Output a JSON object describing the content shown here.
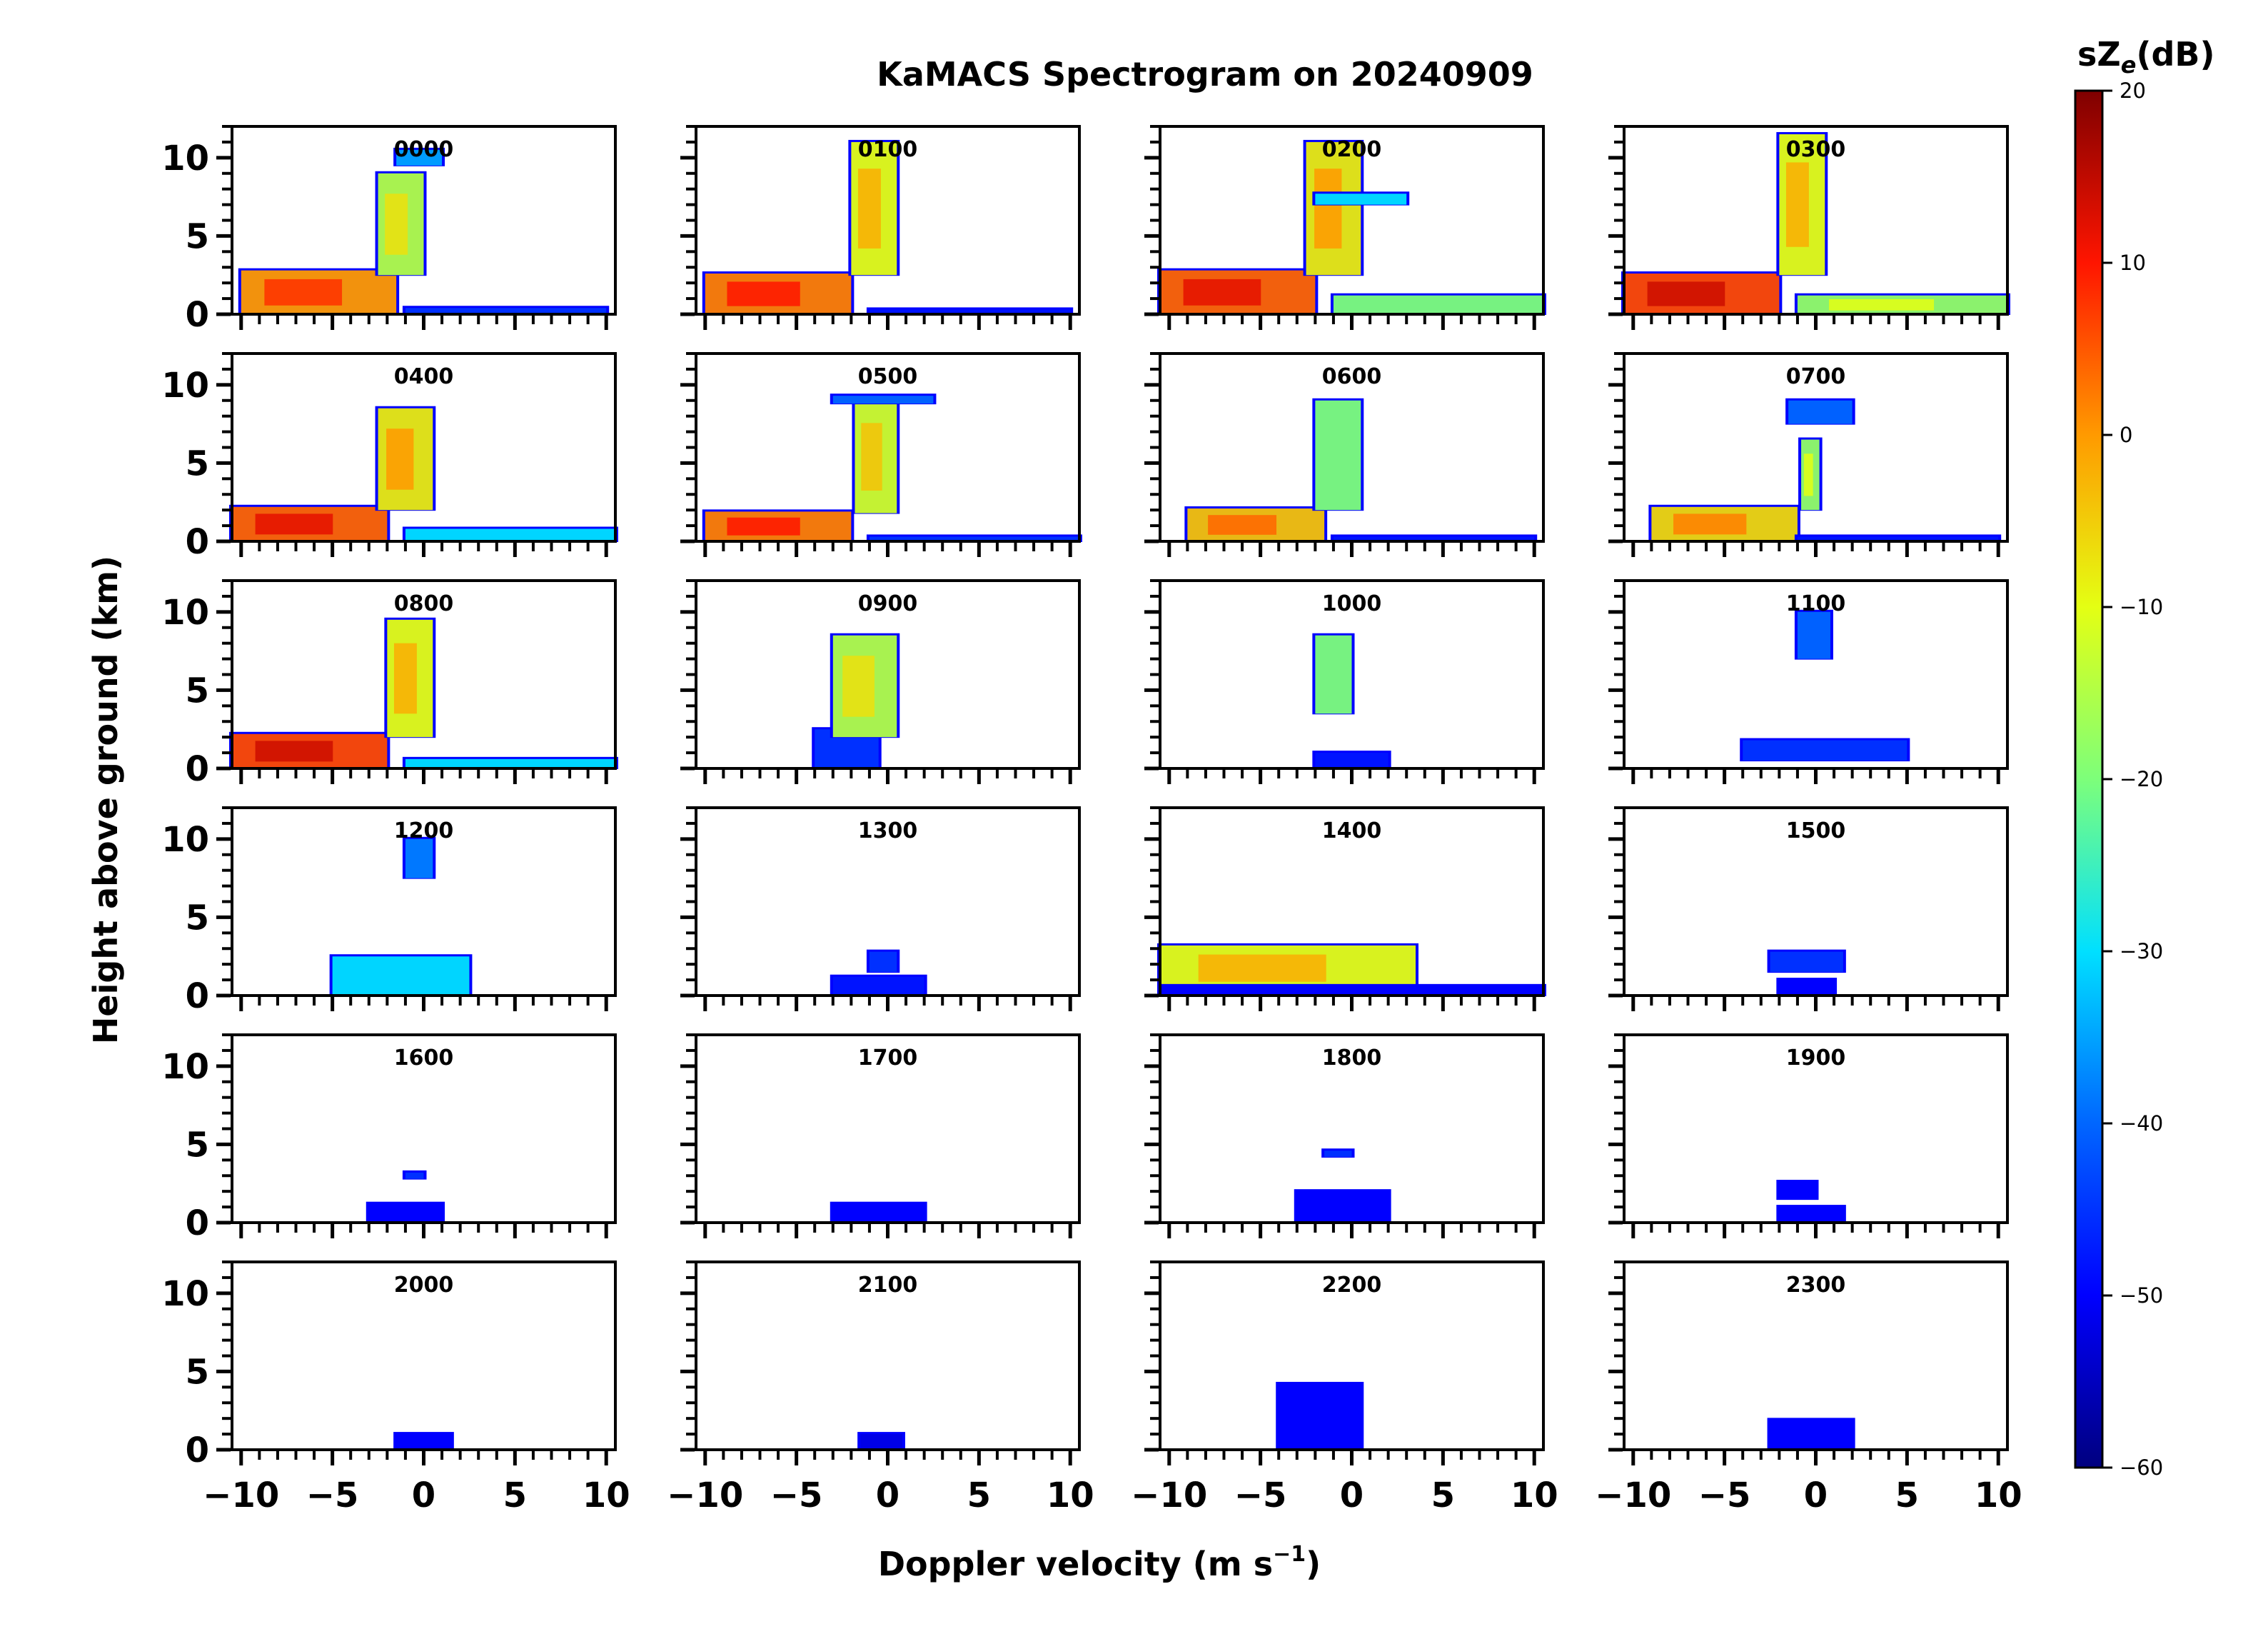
{
  "chart_data": {
    "type": "heatmap",
    "title": "KaMACS Spectrogram on 20240909",
    "xlabel_main": "Doppler velocity (m s",
    "xlabel_sup": "−1",
    "xlabel_close": ")",
    "ylabel": "Height above ground (km)",
    "colorbar": {
      "label_main": "sZ",
      "label_sub": "e",
      "label_rest": "(dB)",
      "range": [
        -60,
        20
      ],
      "ticks": [
        20,
        10,
        0,
        -10,
        -20,
        -30,
        -40,
        -50,
        -60
      ],
      "tick_labels": [
        "20",
        "10",
        "0",
        "−10",
        "−20",
        "−30",
        "−40",
        "−50",
        "−60"
      ]
    },
    "x_range": [
      -10.5,
      10.5
    ],
    "y_range": [
      0,
      12
    ],
    "x_ticks": [
      -10,
      -5,
      0,
      5,
      10
    ],
    "x_tick_labels": [
      "−10",
      "−5",
      "0",
      "5",
      "10"
    ],
    "y_ticks": [
      0,
      5,
      10
    ],
    "y_tick_labels": [
      "0",
      "5",
      "10"
    ],
    "panels": [
      {
        "label": "0000",
        "blobs": [
          {
            "v0": -10,
            "v1": -1.5,
            "h0": 0,
            "h1": 2.8,
            "db": 0
          },
          {
            "v0": -2.5,
            "v1": 0,
            "h0": 2.5,
            "h1": 9,
            "db": -15
          },
          {
            "v0": -1.5,
            "v1": 1,
            "h0": 9.5,
            "h1": 10.5,
            "db": -35
          },
          {
            "v0": -1,
            "v1": 10,
            "h0": 0,
            "h1": 0.4,
            "db": -45
          }
        ]
      },
      {
        "label": "0100",
        "blobs": [
          {
            "v0": -10,
            "v1": -2,
            "h0": 0,
            "h1": 2.6,
            "db": 2
          },
          {
            "v0": -2,
            "v1": 0.5,
            "h0": 2.5,
            "h1": 11,
            "db": -10
          },
          {
            "v0": -1,
            "v1": 10,
            "h0": 0,
            "h1": 0.3,
            "db": -48
          }
        ]
      },
      {
        "label": "0200",
        "blobs": [
          {
            "v0": -10.5,
            "v1": -2,
            "h0": 0,
            "h1": 2.8,
            "db": 4
          },
          {
            "v0": -2.5,
            "v1": 0.5,
            "h0": 2.5,
            "h1": 11,
            "db": -8
          },
          {
            "v0": -2,
            "v1": 3,
            "h0": 7,
            "h1": 7.7,
            "db": -30
          },
          {
            "v0": -1,
            "v1": 10.5,
            "h0": 0,
            "h1": 1.2,
            "db": -20
          }
        ]
      },
      {
        "label": "0300",
        "blobs": [
          {
            "v0": -10.5,
            "v1": -2,
            "h0": 0,
            "h1": 2.6,
            "db": 6
          },
          {
            "v0": -2,
            "v1": 0.5,
            "h0": 2.5,
            "h1": 11.5,
            "db": -10
          },
          {
            "v0": -1,
            "v1": 10.5,
            "h0": 0,
            "h1": 1.2,
            "db": -18
          }
        ]
      },
      {
        "label": "0400",
        "blobs": [
          {
            "v0": -10.5,
            "v1": -2,
            "h0": 0,
            "h1": 2.2,
            "db": 4
          },
          {
            "v0": -2.5,
            "v1": 0.5,
            "h0": 2,
            "h1": 8.5,
            "db": -8
          },
          {
            "v0": -1,
            "v1": 10.5,
            "h0": 0,
            "h1": 0.8,
            "db": -30
          }
        ]
      },
      {
        "label": "0500",
        "blobs": [
          {
            "v0": -10,
            "v1": -2,
            "h0": 0,
            "h1": 1.9,
            "db": 2
          },
          {
            "v0": -1.8,
            "v1": 0.5,
            "h0": 1.8,
            "h1": 9,
            "db": -12
          },
          {
            "v0": -3,
            "v1": 2.5,
            "h0": 8.8,
            "h1": 9.3,
            "db": -40
          },
          {
            "v0": -1,
            "v1": 10.5,
            "h0": 0,
            "h1": 0.3,
            "db": -45
          }
        ]
      },
      {
        "label": "0600",
        "blobs": [
          {
            "v0": -9,
            "v1": -1.5,
            "h0": 0,
            "h1": 2.1,
            "db": -4
          },
          {
            "v0": -2,
            "v1": 0.5,
            "h0": 2,
            "h1": 9,
            "db": -20
          },
          {
            "v0": -1,
            "v1": 10,
            "h0": 0,
            "h1": 0.3,
            "db": -48
          }
        ]
      },
      {
        "label": "0700",
        "blobs": [
          {
            "v0": -9,
            "v1": -1,
            "h0": 0,
            "h1": 2.2,
            "db": -6
          },
          {
            "v0": -0.8,
            "v1": 0.2,
            "h0": 2,
            "h1": 6.5,
            "db": -18
          },
          {
            "v0": -1.5,
            "v1": 2,
            "h0": 7.5,
            "h1": 9,
            "db": -40
          },
          {
            "v0": -1,
            "v1": 10,
            "h0": 0,
            "h1": 0.3,
            "db": -48
          }
        ]
      },
      {
        "label": "0800",
        "blobs": [
          {
            "v0": -10.5,
            "v1": -2,
            "h0": 0,
            "h1": 2.2,
            "db": 6
          },
          {
            "v0": -2,
            "v1": 0.5,
            "h0": 2,
            "h1": 9.5,
            "db": -10
          },
          {
            "v0": -1,
            "v1": 10.5,
            "h0": 0,
            "h1": 0.6,
            "db": -30
          }
        ]
      },
      {
        "label": "0900",
        "blobs": [
          {
            "v0": -4,
            "v1": -0.5,
            "h0": 0,
            "h1": 2.5,
            "db": -45
          },
          {
            "v0": -3,
            "v1": 0.5,
            "h0": 2,
            "h1": 8.5,
            "db": -15
          }
        ]
      },
      {
        "label": "1000",
        "blobs": [
          {
            "v0": -2,
            "v1": 0,
            "h0": 3.5,
            "h1": 8.5,
            "db": -20
          },
          {
            "v0": -2,
            "v1": 2,
            "h0": 0,
            "h1": 1,
            "db": -48
          }
        ]
      },
      {
        "label": "1100",
        "blobs": [
          {
            "v0": -1,
            "v1": 0.8,
            "h0": 7,
            "h1": 10,
            "db": -40
          },
          {
            "v0": -4,
            "v1": 5,
            "h0": 0.5,
            "h1": 1.8,
            "db": -45
          }
        ]
      },
      {
        "label": "1200",
        "blobs": [
          {
            "v0": -1,
            "v1": 0.5,
            "h0": 7.5,
            "h1": 10,
            "db": -38
          },
          {
            "v0": -5,
            "v1": 2.5,
            "h0": 0,
            "h1": 2.5,
            "db": -30
          }
        ]
      },
      {
        "label": "1300",
        "blobs": [
          {
            "v0": -3,
            "v1": 2,
            "h0": 0,
            "h1": 1.2,
            "db": -48
          },
          {
            "v0": -1,
            "v1": 0.5,
            "h0": 1.5,
            "h1": 2.8,
            "db": -45
          }
        ]
      },
      {
        "label": "1400",
        "blobs": [
          {
            "v0": -10.5,
            "v1": 3.5,
            "h0": 0.3,
            "h1": 3.2,
            "db": -10
          },
          {
            "v0": -10.5,
            "v1": 10.5,
            "h0": 0,
            "h1": 0.6,
            "db": -50
          }
        ]
      },
      {
        "label": "1500",
        "blobs": [
          {
            "v0": -2.5,
            "v1": 1.5,
            "h0": 1.5,
            "h1": 2.8,
            "db": -45
          },
          {
            "v0": -2,
            "v1": 1,
            "h0": 0,
            "h1": 1,
            "db": -50
          }
        ]
      },
      {
        "label": "1600",
        "blobs": [
          {
            "v0": -3,
            "v1": 1,
            "h0": 0,
            "h1": 1.2,
            "db": -50
          },
          {
            "v0": -1,
            "v1": 0,
            "h0": 2.8,
            "h1": 3.2,
            "db": -45
          }
        ]
      },
      {
        "label": "1700",
        "blobs": [
          {
            "v0": -3,
            "v1": 2,
            "h0": 0,
            "h1": 1.2,
            "db": -50
          }
        ]
      },
      {
        "label": "1800",
        "blobs": [
          {
            "v0": -3,
            "v1": 2,
            "h0": 0,
            "h1": 2,
            "db": -50
          },
          {
            "v0": -1.5,
            "v1": 0,
            "h0": 4.2,
            "h1": 4.6,
            "db": -45
          }
        ]
      },
      {
        "label": "1900",
        "blobs": [
          {
            "v0": -2,
            "v1": 1.5,
            "h0": 0,
            "h1": 1,
            "db": -50
          },
          {
            "v0": -2,
            "v1": 0,
            "h0": 1.5,
            "h1": 2.6,
            "db": -50
          }
        ]
      },
      {
        "label": "2000",
        "blobs": [
          {
            "v0": -1.5,
            "v1": 1.5,
            "h0": 0,
            "h1": 1,
            "db": -50
          }
        ]
      },
      {
        "label": "2100",
        "blobs": [
          {
            "v0": -1.5,
            "v1": 0.8,
            "h0": 0,
            "h1": 1,
            "db": -52
          }
        ]
      },
      {
        "label": "2200",
        "blobs": [
          {
            "v0": -4,
            "v1": 0.5,
            "h0": 0,
            "h1": 4.2,
            "db": -50
          }
        ]
      },
      {
        "label": "2300",
        "blobs": [
          {
            "v0": -2.5,
            "v1": 2,
            "h0": 0,
            "h1": 1.9,
            "db": -50
          }
        ]
      }
    ]
  }
}
